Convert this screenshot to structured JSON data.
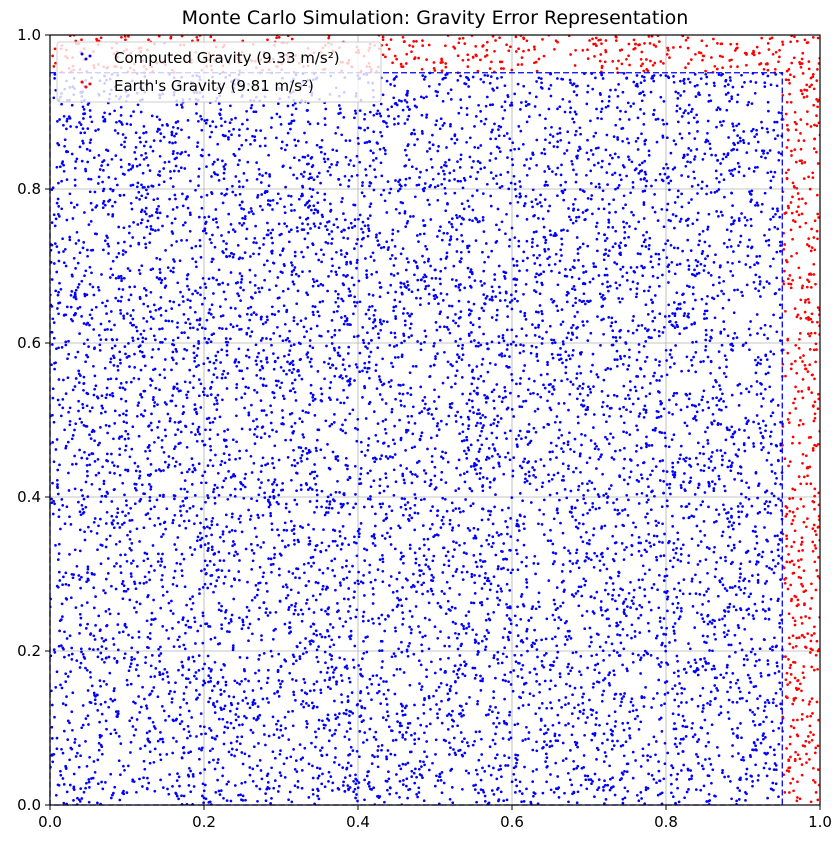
{
  "chart_data": {
    "type": "scatter",
    "title": "Monte Carlo Simulation: Gravity Error Representation",
    "xlabel": "",
    "ylabel": "",
    "xlim": [
      0,
      1
    ],
    "ylim": [
      0,
      1
    ],
    "x_ticks": [
      "0.0",
      "0.2",
      "0.4",
      "0.6",
      "0.8",
      "1.0"
    ],
    "y_ticks": [
      "0.0",
      "0.2",
      "0.4",
      "0.6",
      "0.8",
      "1.0"
    ],
    "grid": true,
    "legend_placement": "upper-left",
    "region_boundary": {
      "x_max": 0.951,
      "y_max": 0.951,
      "style": "dashed",
      "color": "#0000ff"
    },
    "sampling": {
      "total_points": 10000,
      "distribution": "uniform",
      "inside_fraction": 0.904
    },
    "series": [
      {
        "name": "Computed Gravity (9.33 m/s²)",
        "color": "#0000ff",
        "marker": "dot",
        "region": "inside",
        "condition": "x < 0.951 and y < 0.951",
        "approx_count": 9040
      },
      {
        "name": "Earth's Gravity (9.81 m/s²)",
        "color": "#ff0000",
        "marker": "dot",
        "region": "outside",
        "condition": "x >= 0.951 or y >= 0.951",
        "approx_count": 960
      }
    ]
  }
}
